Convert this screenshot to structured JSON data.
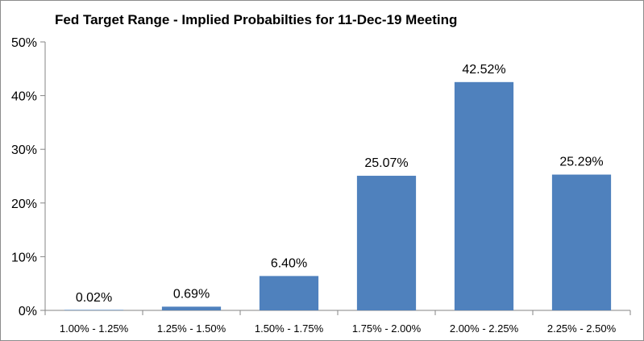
{
  "chart_data": {
    "type": "bar",
    "title": "Fed Target Range - Implied Probabilties for 11-Dec-19 Meeting",
    "categories": [
      "1.00% - 1.25%",
      "1.25% - 1.50%",
      "1.50% - 1.75%",
      "1.75% - 2.00%",
      "2.00% - 2.25%",
      "2.25% - 2.50%"
    ],
    "values": [
      0.02,
      0.69,
      6.4,
      25.07,
      42.52,
      25.29
    ],
    "data_labels": [
      "0.02%",
      "0.69%",
      "6.40%",
      "25.07%",
      "42.52%",
      "25.29%"
    ],
    "xlabel": "",
    "ylabel": "",
    "ylim": [
      0,
      50
    ],
    "yticks": [
      0,
      10,
      20,
      30,
      40,
      50
    ],
    "ytick_labels": [
      "0%",
      "10%",
      "20%",
      "30%",
      "40%",
      "50%"
    ],
    "grid": false,
    "legend": "none",
    "bar_color": "#4f81bd",
    "axis_color": "#868686"
  }
}
